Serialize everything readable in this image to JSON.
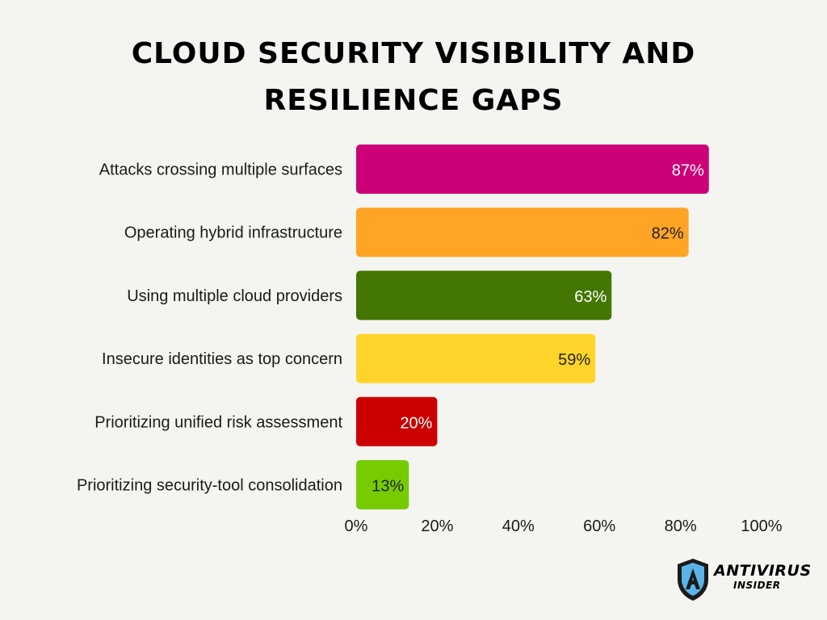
{
  "chart_data": {
    "type": "bar",
    "orientation": "horizontal",
    "title_lines": [
      "CLOUD SECURITY VISIBILITY AND",
      "RESILIENCE GAPS"
    ],
    "categories": [
      "Attacks crossing multiple surfaces",
      "Operating hybrid infrastructure",
      "Using multiple cloud providers",
      "Insecure identities as top concern",
      "Prioritizing unified risk assessment",
      "Prioritizing security-tool consolidation"
    ],
    "values": [
      87,
      82,
      63,
      59,
      20,
      13
    ],
    "value_labels": [
      "87%",
      "82%",
      "63%",
      "59%",
      "20%",
      "13%"
    ],
    "bar_colors": [
      "#cc0077",
      "#ffa424",
      "#437603",
      "#ffd42a",
      "#cc0000",
      "#76cc00"
    ],
    "label_colors": [
      "#ffffff",
      "#222222",
      "#ffffff",
      "#222222",
      "#ffffff",
      "#222222"
    ],
    "xlim": [
      0,
      100
    ],
    "xticks": [
      0,
      20,
      40,
      60,
      80,
      100
    ],
    "xtick_labels": [
      "0%",
      "20%",
      "40%",
      "60%",
      "80%",
      "100%"
    ],
    "grid": false,
    "legend": "none"
  },
  "brand": {
    "word1": "ANTIVIRUS",
    "word2": "INSIDER",
    "logo_icon": "shield-icon",
    "shield_color": "#1a1a1a",
    "shield_accent": "#5ab4e8"
  }
}
